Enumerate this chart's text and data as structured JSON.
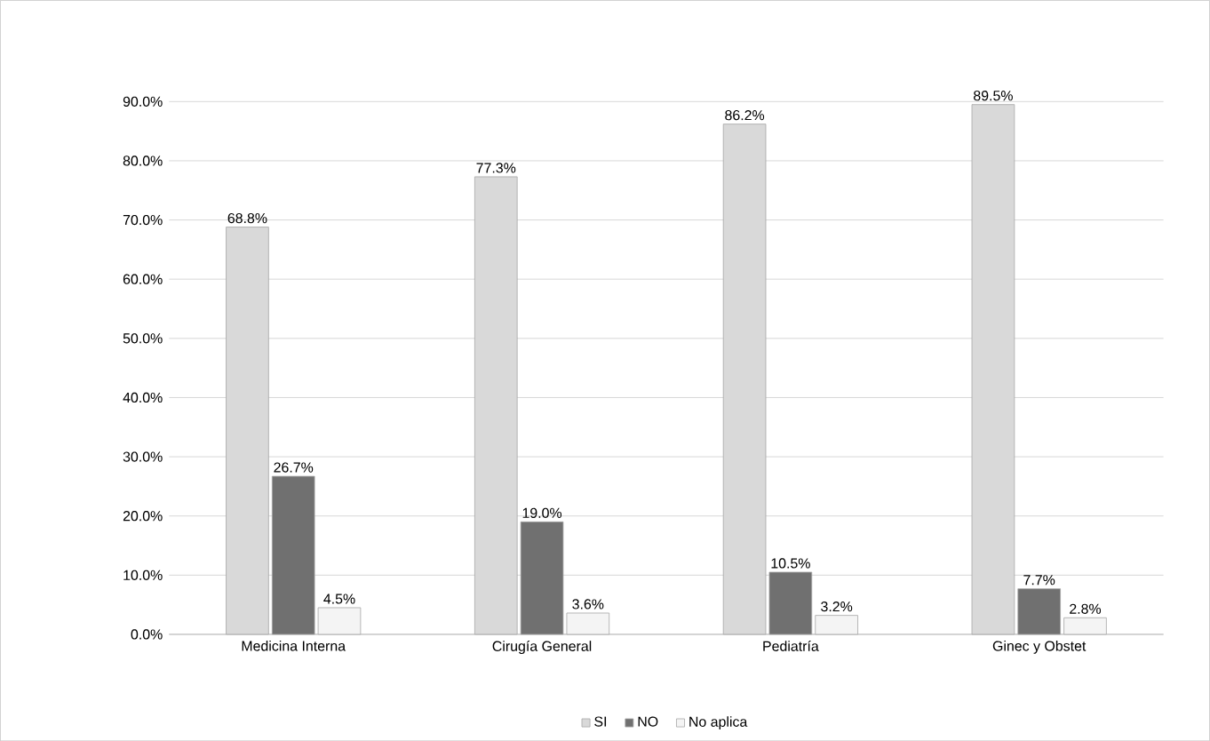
{
  "chart_data": {
    "type": "bar",
    "categories": [
      "Medicina Interna",
      "Cirugía General",
      "Pediatría",
      "Ginec y Obstet"
    ],
    "series": [
      {
        "name": "SI",
        "color": "#d9d9d9",
        "values": [
          68.8,
          77.3,
          86.2,
          89.5
        ],
        "value_labels": [
          "68.8%",
          "77.3%",
          "86.2%",
          "89.5%"
        ]
      },
      {
        "name": "NO",
        "color": "#707070",
        "values": [
          26.7,
          19.0,
          10.5,
          7.7
        ],
        "value_labels": [
          "26.7%",
          "19.0%",
          "10.5%",
          "7.7%"
        ]
      },
      {
        "name": "No aplica",
        "color": "#f4f4f4",
        "values": [
          4.5,
          3.6,
          3.2,
          2.8
        ],
        "value_labels": [
          "4.5%",
          "3.6%",
          "3.2%",
          "2.8%"
        ]
      }
    ],
    "ylim": [
      0,
      90
    ],
    "yticks": [
      {
        "value": 0,
        "label": "0.0%"
      },
      {
        "value": 10,
        "label": "10.0%"
      },
      {
        "value": 20,
        "label": "20.0%"
      },
      {
        "value": 30,
        "label": "30.0%"
      },
      {
        "value": 40,
        "label": "40.0%"
      },
      {
        "value": 50,
        "label": "50.0%"
      },
      {
        "value": 60,
        "label": "60.0%"
      },
      {
        "value": 70,
        "label": "70.0%"
      },
      {
        "value": 80,
        "label": "80.0%"
      },
      {
        "value": 90,
        "label": "90.0%"
      }
    ],
    "grid": "y",
    "legend": "bottom"
  }
}
